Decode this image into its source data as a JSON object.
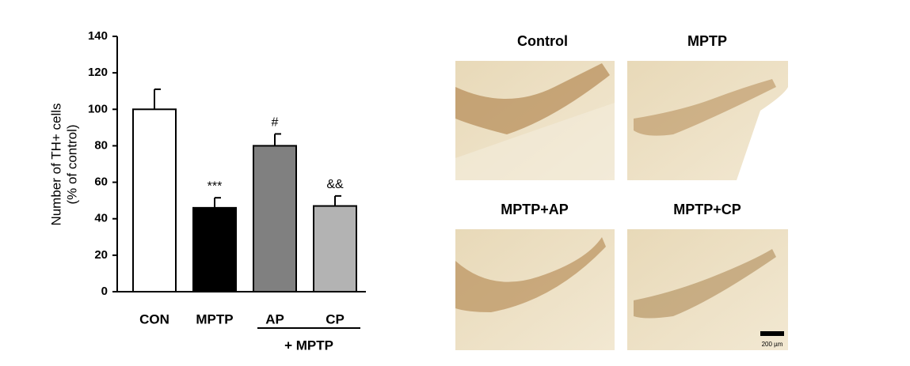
{
  "chart_data": {
    "type": "bar",
    "ylabel": [
      "Number of TH+ cells",
      "(% of control)"
    ],
    "categories": [
      "CON",
      "MPTP",
      "AP",
      "CP"
    ],
    "values": [
      100,
      46,
      80,
      47
    ],
    "errors": [
      11,
      5.5,
      6.5,
      5.5
    ],
    "colors": [
      "#ffffff",
      "#000000",
      "#808080",
      "#b3b3b3"
    ],
    "bar_labels": [
      null,
      "***",
      "#",
      "&&"
    ],
    "group_label": "+ MPTP",
    "ylim": [
      0,
      140
    ],
    "yticks": [
      0,
      20,
      40,
      60,
      80,
      100,
      120,
      140
    ]
  },
  "panels": {
    "titles": [
      "Control",
      "MPTP",
      "MPTP+AP",
      "MPTP+CP"
    ],
    "scale_bar": "200 µm"
  }
}
